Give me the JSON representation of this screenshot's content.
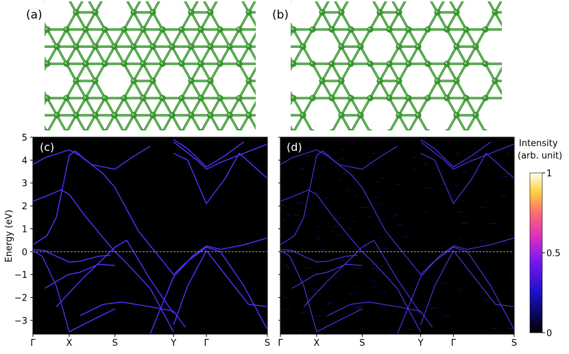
{
  "panels": {
    "a": "(a)",
    "b": "(b)",
    "c": "(c)",
    "d": "(d)"
  },
  "colors": {
    "atom": "#3a9a32",
    "bond": "#3f9b37",
    "background_plot": "#000000",
    "fermi_line": "#aaaaaa"
  },
  "chart_data": [
    {
      "type": "band-structure",
      "panel": "(c)",
      "ylabel": "Energy (eV)",
      "ylim": [
        -3.6,
        5
      ],
      "yticks": [
        5,
        4,
        3,
        2,
        1,
        0,
        -1,
        -2,
        -3
      ],
      "kpath": [
        "Γ",
        "X",
        "S",
        "Y",
        "Γ",
        "S"
      ],
      "fermi_level": 0
    },
    {
      "type": "band-structure",
      "panel": "(d)",
      "ylim": [
        -3.6,
        5
      ],
      "kpath": [
        "Γ",
        "X",
        "S",
        "Y",
        "Γ",
        "S"
      ],
      "fermi_level": 0
    }
  ],
  "colorbar": {
    "title_line1": "Intensity",
    "title_line2": "(arb. unit)",
    "ticks": [
      "1",
      "0.5",
      "0"
    ],
    "tick_values": [
      1,
      0.5,
      0
    ]
  }
}
